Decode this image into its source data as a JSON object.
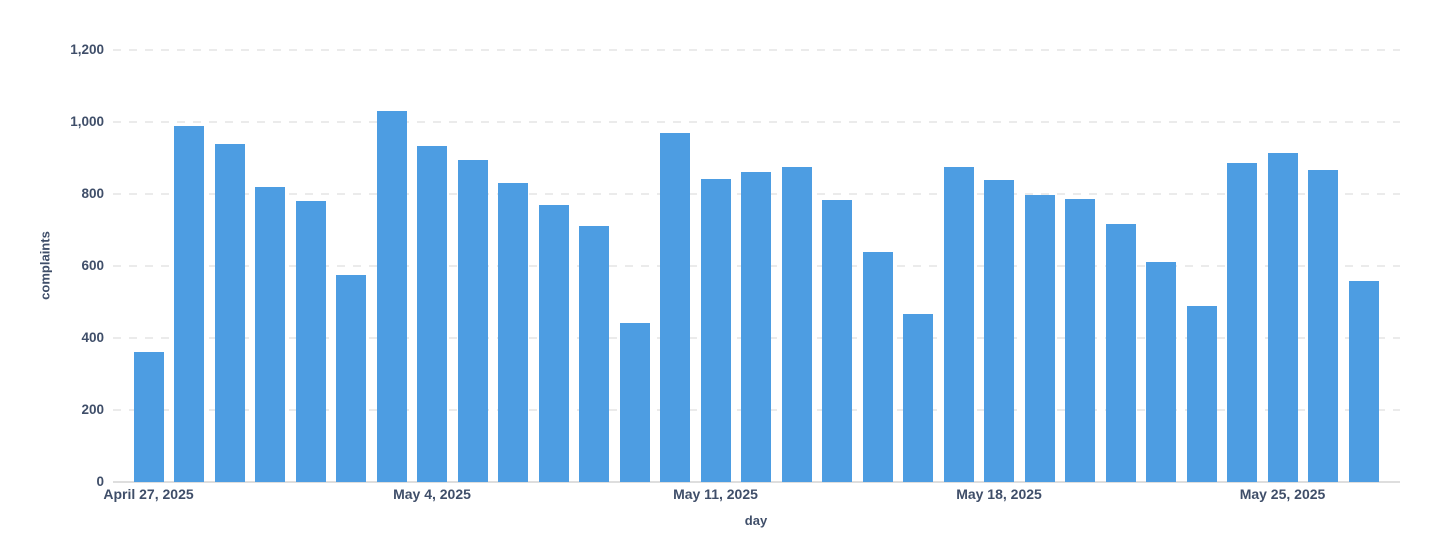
{
  "chart_data": {
    "type": "bar",
    "title": "",
    "xlabel": "day",
    "ylabel": "complaints",
    "ylim": [
      0,
      1200
    ],
    "grid": "horizontal-dashed",
    "legend": "none",
    "x": [
      "Apr 27, 2025",
      "Apr 28, 2025",
      "Apr 29, 2025",
      "Apr 30, 2025",
      "May 1, 2025",
      "May 2, 2025",
      "May 3, 2025",
      "May 4, 2025",
      "May 5, 2025",
      "May 6, 2025",
      "May 7, 2025",
      "May 8, 2025",
      "May 9, 2025",
      "May 10, 2025",
      "May 11, 2025",
      "May 12, 2025",
      "May 13, 2025",
      "May 14, 2025",
      "May 15, 2025",
      "May 16, 2025",
      "May 17, 2025",
      "May 18, 2025",
      "May 19, 2025",
      "May 20, 2025",
      "May 21, 2025",
      "May 22, 2025",
      "May 23, 2025",
      "May 24, 2025",
      "May 25, 2025",
      "May 26, 2025",
      "May 27, 2025"
    ],
    "values": [
      360,
      990,
      938,
      820,
      780,
      575,
      1030,
      932,
      895,
      830,
      770,
      710,
      442,
      970,
      843,
      862,
      875,
      782,
      640,
      468,
      875,
      840,
      798,
      786,
      717,
      612,
      490,
      885,
      915,
      866,
      557
    ],
    "y_ticks": [
      {
        "value": 0,
        "label": "0"
      },
      {
        "value": 200,
        "label": "200"
      },
      {
        "value": 400,
        "label": "400"
      },
      {
        "value": 600,
        "label": "600"
      },
      {
        "value": 800,
        "label": "800"
      },
      {
        "value": 1000,
        "label": "1,000"
      },
      {
        "value": 1200,
        "label": "1,200"
      }
    ],
    "x_ticks": [
      {
        "index": 0,
        "label": "April 27, 2025"
      },
      {
        "index": 7,
        "label": "May 4, 2025"
      },
      {
        "index": 14,
        "label": "May 11, 2025"
      },
      {
        "index": 21,
        "label": "May 18, 2025"
      },
      {
        "index": 28,
        "label": "May 25, 2025"
      }
    ],
    "colors": {
      "bar": "#4D9DE2",
      "text": "#3F4E69",
      "gridline": "#EBEBEB",
      "axis_line": "#DEDEDE",
      "background": "#FFFFFF"
    }
  }
}
